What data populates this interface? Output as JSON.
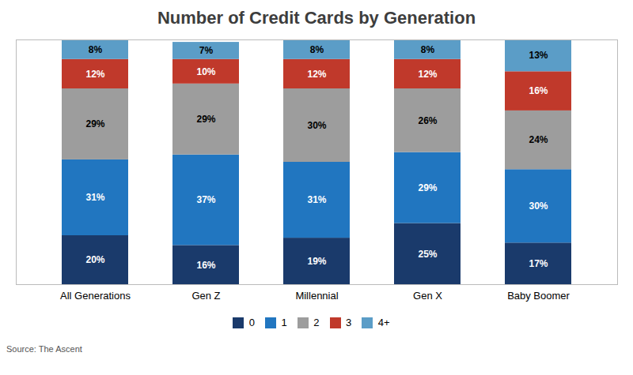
{
  "chart_data": {
    "type": "bar",
    "title": "Number of Credit Cards by Generation",
    "categories": [
      "All Generations",
      "Gen Z",
      "Millennial",
      "Gen X",
      "Baby Boomer"
    ],
    "series": [
      {
        "name": "0",
        "color": "#1a3a6b",
        "values": [
          20,
          16,
          19,
          25,
          17
        ],
        "value_labels": [
          "20%",
          "16%",
          "19%",
          "25%",
          "17%"
        ]
      },
      {
        "name": "1",
        "color": "#2176c0",
        "values": [
          31,
          37,
          31,
          29,
          30
        ],
        "value_labels": [
          "31%",
          "37%",
          "31%",
          "29%",
          "30%"
        ]
      },
      {
        "name": "2",
        "color": "#9d9d9d",
        "values": [
          29,
          29,
          30,
          26,
          24
        ],
        "value_labels": [
          "29%",
          "29%",
          "30%",
          "26%",
          "24%"
        ]
      },
      {
        "name": "3",
        "color": "#c0392b",
        "values": [
          12,
          10,
          12,
          12,
          16
        ],
        "value_labels": [
          "12%",
          "10%",
          "12%",
          "12%",
          "16%"
        ]
      },
      {
        "name": "4+",
        "color": "#5b9dc7",
        "values": [
          8,
          7,
          8,
          8,
          13
        ],
        "value_labels": [
          "8%",
          "7%",
          "8%",
          "8%",
          "13%"
        ]
      }
    ],
    "stacked": true,
    "data_labels": true,
    "ylim": [
      0,
      100
    ],
    "yticks": [],
    "tick_labels": "x",
    "grid": false,
    "legend": "bottom",
    "source": "Source: The Ascent"
  }
}
